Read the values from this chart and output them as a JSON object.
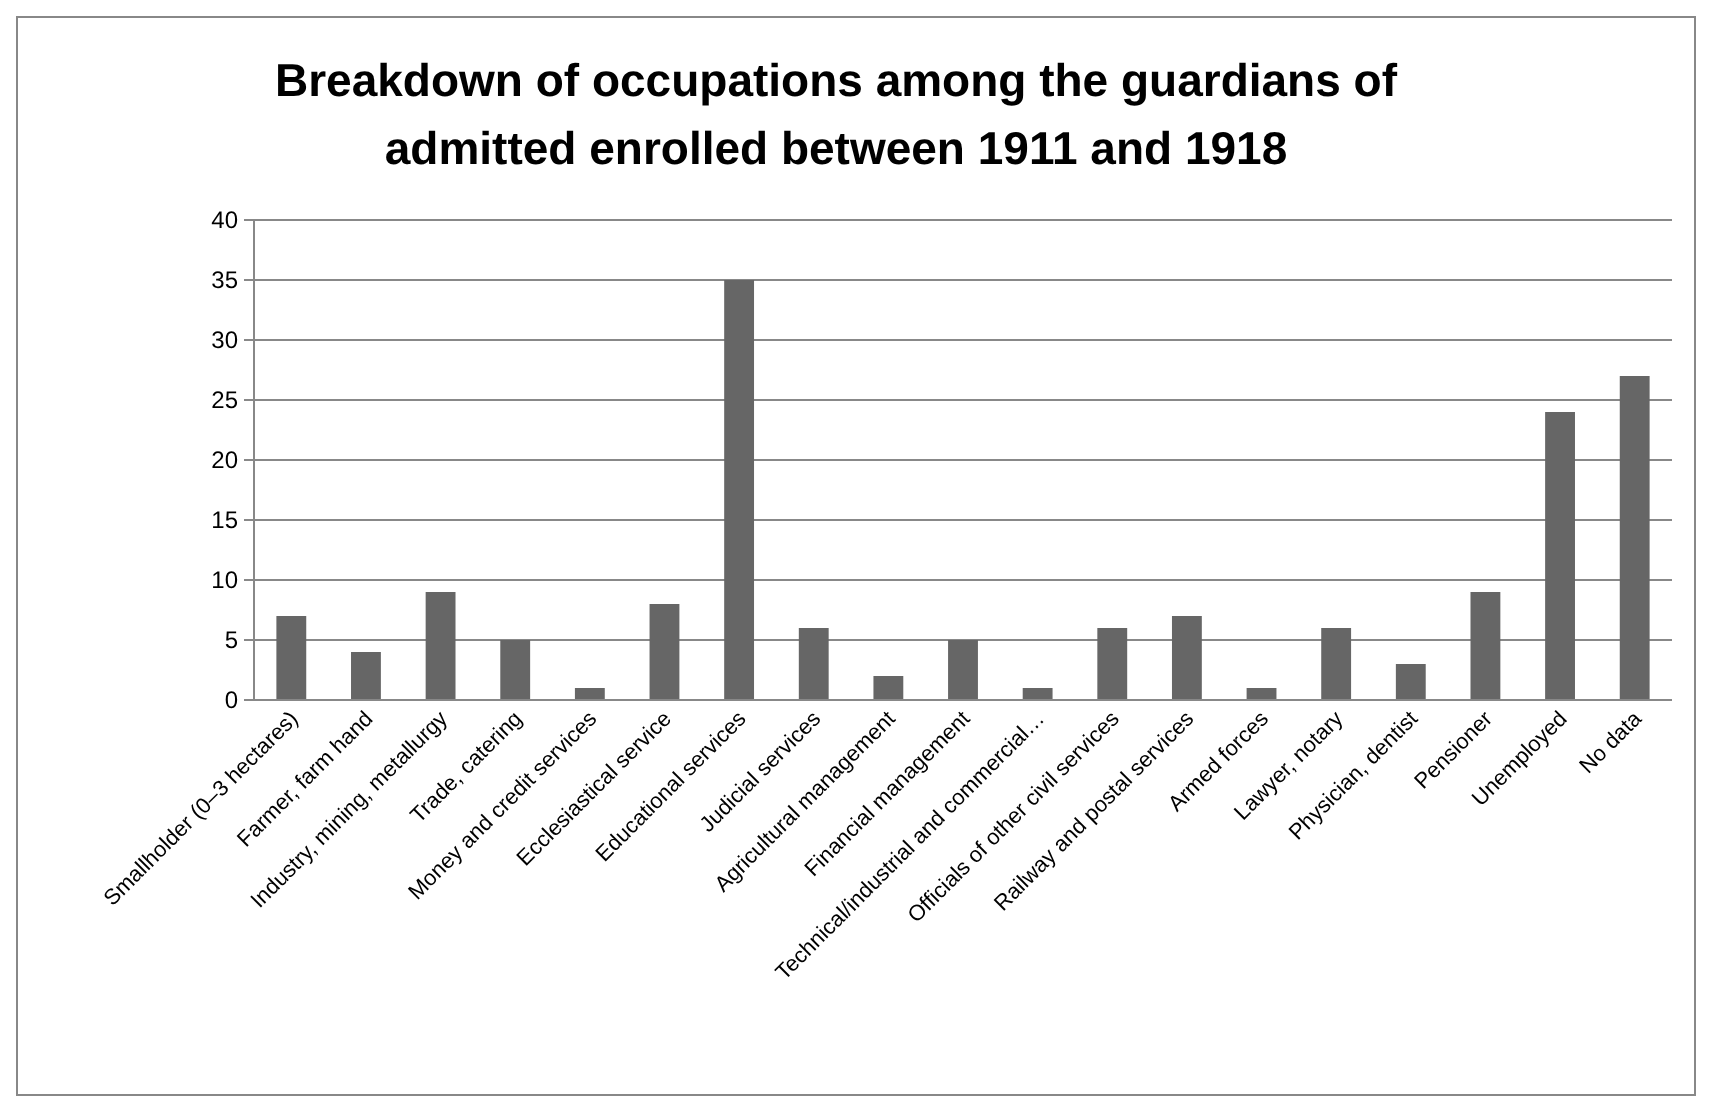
{
  "chart_data": {
    "type": "bar",
    "title": "Breakdown of occupations among the guardians of admitted enrolled between 1911 and 1918",
    "categories": [
      "Smallholder (0–3 hectares)",
      "Farmer, farm hand",
      "Industry, mining, metallurgy",
      "Trade, catering",
      "Money and credit services",
      "Ecclesiastical service",
      "Educational services",
      "Judicial services",
      "Agricultural management",
      "Financial management",
      "Technical/industrial and commercial…",
      "Officials of other civil services",
      "Railway and postal services",
      "Armed forces",
      "Lawyer, notary",
      "Physician, dentist",
      "Pensioner",
      "Unemployed",
      "No data"
    ],
    "values": [
      7,
      4,
      9,
      5,
      1,
      8,
      35,
      6,
      2,
      5,
      1,
      6,
      7,
      1,
      6,
      3,
      9,
      24,
      27
    ],
    "color": "#666666",
    "ylim": [
      0,
      40
    ],
    "yticks": [
      0,
      5,
      10,
      15,
      20,
      25,
      30,
      35,
      40
    ],
    "grid": "y"
  }
}
